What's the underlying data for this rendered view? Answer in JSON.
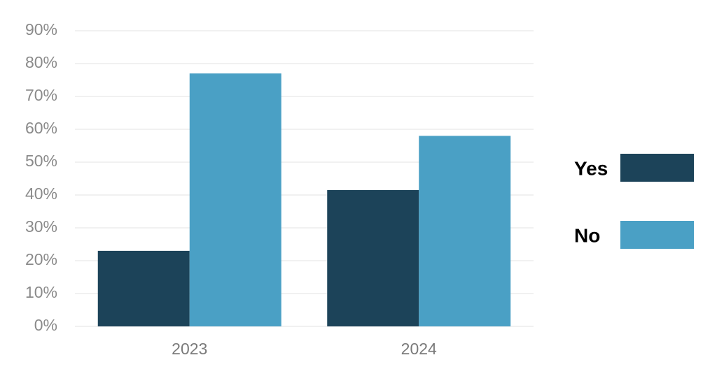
{
  "chart_data": {
    "type": "bar",
    "categories": [
      "2023",
      "2024"
    ],
    "series": [
      {
        "name": "Yes",
        "color": "#1c4359",
        "values": [
          23,
          41.5
        ]
      },
      {
        "name": "No",
        "color": "#4aa0c5",
        "values": [
          77,
          58
        ]
      }
    ],
    "ylim": [
      0,
      90
    ],
    "yticks": [
      {
        "value": 0,
        "label": "0%"
      },
      {
        "value": 10,
        "label": "10%"
      },
      {
        "value": 20,
        "label": "20%"
      },
      {
        "value": 30,
        "label": "30%"
      },
      {
        "value": 40,
        "label": "40%"
      },
      {
        "value": 50,
        "label": "50%"
      },
      {
        "value": 60,
        "label": "60%"
      },
      {
        "value": 70,
        "label": "70%"
      },
      {
        "value": 80,
        "label": "80%"
      },
      {
        "value": 90,
        "label": "90%"
      }
    ],
    "grid": true,
    "legend": "right"
  }
}
